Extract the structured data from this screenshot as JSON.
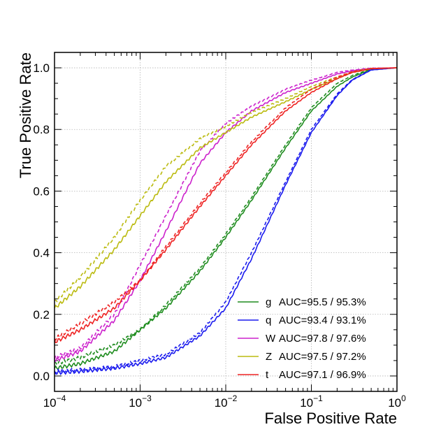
{
  "chart_data": {
    "type": "line",
    "xlabel": "False Positive Rate",
    "ylabel": "True Positive Rate",
    "xscale": "log",
    "xlim": [
      0.0001,
      1
    ],
    "ylim": [
      -0.05,
      1.05
    ],
    "grid": true,
    "legend_position": "bottom-right",
    "x_ticks": [
      {
        "value": 0.0001,
        "base": "10",
        "exp": "−4"
      },
      {
        "value": 0.001,
        "base": "10",
        "exp": "−3"
      },
      {
        "value": 0.01,
        "base": "10",
        "exp": "−2"
      },
      {
        "value": 0.1,
        "base": "10",
        "exp": "−1"
      },
      {
        "value": 1,
        "base": "10",
        "exp": "0"
      }
    ],
    "y_ticks": [
      {
        "value": 0.0,
        "label": "0.0"
      },
      {
        "value": 0.2,
        "label": "0.2"
      },
      {
        "value": 0.4,
        "label": "0.4"
      },
      {
        "value": 0.6,
        "label": "0.6"
      },
      {
        "value": 0.8,
        "label": "0.8"
      },
      {
        "value": 1.0,
        "label": "1.0"
      }
    ],
    "series": [
      {
        "key": "g",
        "name": "g",
        "auc_label": "AUC=95.5 / 95.3%",
        "color": "#1e8c1e",
        "solid": [
          [
            0.0001,
            0.025
          ],
          [
            0.0002,
            0.04
          ],
          [
            0.0005,
            0.08
          ],
          [
            0.001,
            0.15
          ],
          [
            0.002,
            0.22
          ],
          [
            0.005,
            0.34
          ],
          [
            0.01,
            0.45
          ],
          [
            0.02,
            0.57
          ],
          [
            0.05,
            0.74
          ],
          [
            0.1,
            0.86
          ],
          [
            0.2,
            0.94
          ],
          [
            0.3,
            0.97
          ],
          [
            0.5,
            0.995
          ],
          [
            1,
            1.0
          ]
        ],
        "dashed": [
          [
            0.0001,
            0.04
          ],
          [
            0.0002,
            0.06
          ],
          [
            0.0005,
            0.1
          ],
          [
            0.001,
            0.15
          ],
          [
            0.002,
            0.23
          ],
          [
            0.005,
            0.35
          ],
          [
            0.01,
            0.46
          ],
          [
            0.02,
            0.58
          ],
          [
            0.05,
            0.75
          ],
          [
            0.1,
            0.87
          ],
          [
            0.2,
            0.95
          ],
          [
            0.3,
            0.975
          ],
          [
            0.5,
            0.996
          ],
          [
            1,
            1.0
          ]
        ]
      },
      {
        "key": "q",
        "name": "q",
        "auc_label": "AUC=93.4 / 93.1%",
        "color": "#1a1aee",
        "solid": [
          [
            0.0001,
            0.01
          ],
          [
            0.0002,
            0.015
          ],
          [
            0.0005,
            0.025
          ],
          [
            0.001,
            0.04
          ],
          [
            0.002,
            0.06
          ],
          [
            0.005,
            0.13
          ],
          [
            0.01,
            0.22
          ],
          [
            0.02,
            0.38
          ],
          [
            0.05,
            0.62
          ],
          [
            0.1,
            0.79
          ],
          [
            0.2,
            0.91
          ],
          [
            0.3,
            0.96
          ],
          [
            0.5,
            0.993
          ],
          [
            1,
            1.0
          ]
        ],
        "dashed": [
          [
            0.0001,
            0.015
          ],
          [
            0.0002,
            0.02
          ],
          [
            0.0005,
            0.03
          ],
          [
            0.001,
            0.05
          ],
          [
            0.002,
            0.07
          ],
          [
            0.005,
            0.14
          ],
          [
            0.01,
            0.24
          ],
          [
            0.02,
            0.4
          ],
          [
            0.05,
            0.63
          ],
          [
            0.1,
            0.8
          ],
          [
            0.2,
            0.915
          ],
          [
            0.3,
            0.962
          ],
          [
            0.5,
            0.994
          ],
          [
            1,
            1.0
          ]
        ]
      },
      {
        "key": "W",
        "name": "W",
        "auc_label": "AUC=97.8 / 97.6%",
        "color": "#cc22cc",
        "solid": [
          [
            0.0001,
            0.05
          ],
          [
            0.0002,
            0.08
          ],
          [
            0.0005,
            0.18
          ],
          [
            0.001,
            0.31
          ],
          [
            0.002,
            0.47
          ],
          [
            0.005,
            0.69
          ],
          [
            0.01,
            0.79
          ],
          [
            0.02,
            0.86
          ],
          [
            0.05,
            0.92
          ],
          [
            0.1,
            0.95
          ],
          [
            0.2,
            0.98
          ],
          [
            0.3,
            0.99
          ],
          [
            0.5,
            0.998
          ],
          [
            1,
            1.0
          ]
        ],
        "dashed": [
          [
            0.0001,
            0.06
          ],
          [
            0.0002,
            0.09
          ],
          [
            0.0005,
            0.2
          ],
          [
            0.001,
            0.36
          ],
          [
            0.002,
            0.52
          ],
          [
            0.005,
            0.73
          ],
          [
            0.01,
            0.82
          ],
          [
            0.02,
            0.875
          ],
          [
            0.05,
            0.93
          ],
          [
            0.1,
            0.96
          ],
          [
            0.2,
            0.985
          ],
          [
            0.3,
            0.993
          ],
          [
            0.5,
            0.999
          ],
          [
            1,
            1.0
          ]
        ]
      },
      {
        "key": "Z",
        "name": "Z",
        "auc_label": "AUC=97.5 / 97.2%",
        "color": "#bbbb11",
        "solid": [
          [
            0.0001,
            0.22
          ],
          [
            0.0002,
            0.29
          ],
          [
            0.0005,
            0.41
          ],
          [
            0.001,
            0.52
          ],
          [
            0.002,
            0.63
          ],
          [
            0.005,
            0.74
          ],
          [
            0.01,
            0.79
          ],
          [
            0.02,
            0.84
          ],
          [
            0.05,
            0.89
          ],
          [
            0.1,
            0.93
          ],
          [
            0.2,
            0.965
          ],
          [
            0.3,
            0.985
          ],
          [
            0.5,
            0.997
          ],
          [
            1,
            1.0
          ]
        ],
        "dashed": [
          [
            0.0001,
            0.24
          ],
          [
            0.0002,
            0.32
          ],
          [
            0.0005,
            0.45
          ],
          [
            0.001,
            0.57
          ],
          [
            0.002,
            0.68
          ],
          [
            0.005,
            0.77
          ],
          [
            0.01,
            0.81
          ],
          [
            0.02,
            0.855
          ],
          [
            0.05,
            0.9
          ],
          [
            0.1,
            0.94
          ],
          [
            0.2,
            0.97
          ],
          [
            0.3,
            0.988
          ],
          [
            0.5,
            0.998
          ],
          [
            1,
            1.0
          ]
        ]
      },
      {
        "key": "t",
        "name": "t",
        "auc_label": "AUC=97.1 / 96.9%",
        "color": "#ee2222",
        "solid": [
          [
            0.0001,
            0.11
          ],
          [
            0.0002,
            0.15
          ],
          [
            0.0005,
            0.22
          ],
          [
            0.001,
            0.31
          ],
          [
            0.002,
            0.41
          ],
          [
            0.005,
            0.55
          ],
          [
            0.01,
            0.65
          ],
          [
            0.02,
            0.75
          ],
          [
            0.05,
            0.86
          ],
          [
            0.1,
            0.92
          ],
          [
            0.2,
            0.965
          ],
          [
            0.3,
            0.985
          ],
          [
            0.5,
            0.997
          ],
          [
            1,
            1.0
          ]
        ],
        "dashed": [
          [
            0.0001,
            0.12
          ],
          [
            0.0002,
            0.17
          ],
          [
            0.0005,
            0.24
          ],
          [
            0.001,
            0.31
          ],
          [
            0.002,
            0.42
          ],
          [
            0.005,
            0.56
          ],
          [
            0.01,
            0.66
          ],
          [
            0.02,
            0.76
          ],
          [
            0.05,
            0.87
          ],
          [
            0.1,
            0.93
          ],
          [
            0.2,
            0.97
          ],
          [
            0.3,
            0.987
          ],
          [
            0.5,
            0.998
          ],
          [
            1,
            1.0
          ]
        ]
      }
    ]
  }
}
